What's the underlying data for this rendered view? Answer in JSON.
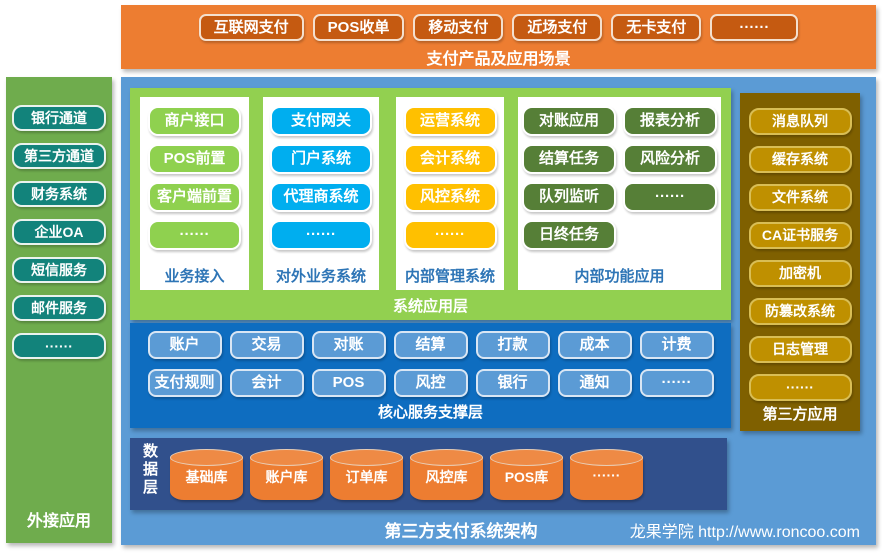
{
  "banner": {
    "items": [
      "互联网支付",
      "POS收单",
      "移动支付",
      "近场支付",
      "无卡支付",
      "······"
    ],
    "label": "支付产品及应用场景"
  },
  "sidebar": {
    "items": [
      "银行通道",
      "第三方通道",
      "财务系统",
      "企业OA",
      "短信服务",
      "邮件服务",
      "······"
    ],
    "label": "外接应用"
  },
  "app_layer": {
    "label": "系统应用层",
    "groups": [
      {
        "label": "业务接入",
        "items": [
          "商户接口",
          "POS前置",
          "客户端前置",
          "······"
        ]
      },
      {
        "label": "对外业务系统",
        "items": [
          "支付网关",
          "门户系统",
          "代理商系统",
          "······"
        ]
      },
      {
        "label": "内部管理系统",
        "items": [
          "运营系统",
          "会计系统",
          "风控系统",
          "······"
        ]
      },
      {
        "label": "内部功能应用",
        "items": [
          "对账应用",
          "报表分析",
          "结算任务",
          "风险分析",
          "队列监听",
          "······",
          "日终任务"
        ]
      }
    ]
  },
  "core_layer": {
    "label": "核心服务支撑层",
    "row1": [
      "账户",
      "交易",
      "对账",
      "结算",
      "打款",
      "成本",
      "计费"
    ],
    "row2": [
      "支付规则",
      "会计",
      "POS",
      "风控",
      "银行",
      "通知",
      "······"
    ]
  },
  "data_layer": {
    "label": "数据层",
    "items": [
      "基础库",
      "账户库",
      "订单库",
      "风控库",
      "POS库",
      "······"
    ]
  },
  "third_party": {
    "label": "第三方应用",
    "items": [
      "消息队列",
      "缓存系统",
      "文件系统",
      "CA证书服务",
      "加密机",
      "防篡改系统",
      "日志管理",
      "······"
    ]
  },
  "footer": {
    "title": "第三方支付系统架构",
    "brand": "龙果学院 http://www.roncoo.com"
  },
  "colors": {
    "banner": "#ED7D31",
    "banner_button": "#C55A11",
    "sidebar": "#6FAC4D",
    "sidebar_button": "#12837B",
    "main_background": "#5B9BD5",
    "app_panel": "#92D050",
    "access_button": "#8FD14F",
    "external_button": "#00AEEF",
    "management_button": "#FFC000",
    "function_button": "#567F37",
    "core_panel": "#0E6DC0",
    "core_button": "#5B9BD5",
    "data_panel": "#31508C",
    "cylinder": "#ED7D31",
    "third_party_panel": "#7F6000",
    "third_party_button": "#BF9000",
    "group_label_text": "#2E75B6"
  }
}
